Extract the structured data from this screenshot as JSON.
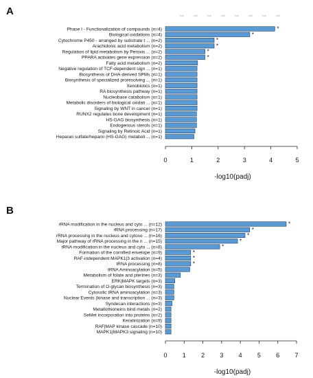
{
  "panels": {
    "a_letter": "A",
    "b_letter": "B"
  },
  "colors": {
    "bar": "#5b9bd5",
    "bar_edge": "#1f3b5a"
  },
  "chart_data": [
    {
      "id": "A",
      "type": "bar",
      "orientation": "horizontal",
      "xlabel": "-log10(padj)",
      "xlim": [
        0,
        5
      ],
      "xticks": [
        0,
        1,
        2,
        3,
        4,
        5
      ],
      "grid": false,
      "categories": [
        "Phase I - Functionalization of compounds (n=4)",
        "Biological oxidations (n=4)",
        "Cytochrome P450 - arranged by substrate t ... (n=2)",
        "Arachidonic acid metabolism (n=2)",
        "Regulation of lipid metabolism by Peroxis ... (n=2)",
        "PPARA activates gene expression (n=2)",
        "Fatty acid metabolism (n=2)",
        "Negative regulation of TCF-dependent sign ... (n=1)",
        "Biosynthesis of DHA-derived SPMs (n=1)",
        "Biosynthesis of specialized proresolving ... (n=1)",
        "Xenobiotics (n=1)",
        "RA biosynthesis pathway (n=1)",
        "Nucleobase catabolism (n=1)",
        "Metabolic disorders of biological oxidati ... (n=1)",
        "Signaling by WNT in cancer (n=1)",
        "RUNX2 regulates bone development (n=1)",
        "HS-GAG biosynthesis (n=1)",
        "Endogenous sterols (n=1)",
        "Signaling by Retinoic Acid (n=1)",
        "Heparan sulfate/heparin (HS-GAG) metaboli ... (n=1)"
      ],
      "values": [
        4.15,
        3.2,
        1.85,
        1.85,
        1.5,
        1.5,
        1.22,
        1.2,
        1.2,
        1.2,
        1.2,
        1.2,
        1.2,
        1.2,
        1.2,
        1.18,
        1.18,
        1.18,
        1.12,
        1.08
      ],
      "significant": [
        "*",
        "*",
        "*",
        "*",
        "*",
        "*",
        "",
        "",
        "",
        "",
        "",
        "",
        "",
        "",
        "",
        "",
        "",
        "",
        "",
        ""
      ]
    },
    {
      "id": "B",
      "type": "bar",
      "orientation": "horizontal",
      "xlabel": "-log10(padj)",
      "xlim": [
        0,
        7
      ],
      "xticks": [
        0,
        1,
        2,
        3,
        4,
        5,
        6,
        7
      ],
      "grid": false,
      "categories": [
        "rRNA modification in the nucleus and cyto ... (n=12)",
        "rRNA processing (n=17)",
        "rRNA processing in the nucleus and cytoso ... (n=16)",
        "Major pathway of rRNA processing in the n ... (n=15)",
        "tRNA modification in the nucleus and cyto ... (n=8)",
        "Formation of the cornified envelope (n=9)",
        "RAF-independent MAPK1|3 activation (n=4)",
        "tRNA processing (n=8)",
        "tRNA Aminoacylation (n=5)",
        "Metabolism of folate and pterines (n=3)",
        "ERK|MAPK targets (n=3)",
        "Termination of O-glycan biosynthesis (n=3)",
        "Cytosolic tRNA aminoacylation (n=3)",
        "Nuclear Events (kinase and transcription ... (n=3)",
        "Syndecan interactions (n=3)",
        "Metallothioneins bind metals (n=2)",
        "SeMet incorporation into proteins (n=2)",
        "Keratinization (n=9)",
        "RAF|MAP kinase cascade (n=10)",
        "MAPK1|MAPK3 signaling (n=10)"
      ],
      "values": [
        6.45,
        4.5,
        4.25,
        3.85,
        2.9,
        1.35,
        1.35,
        1.35,
        1.3,
        0.8,
        0.5,
        0.45,
        0.45,
        0.45,
        0.35,
        0.3,
        0.3,
        0.3,
        0.3,
        0.3
      ],
      "significant": [
        "*",
        "*",
        "*",
        "*",
        "*",
        "*",
        "*",
        "*",
        "",
        "",
        "",
        "",
        "",
        "",
        "",
        "",
        "",
        "",
        "",
        ""
      ]
    }
  ]
}
